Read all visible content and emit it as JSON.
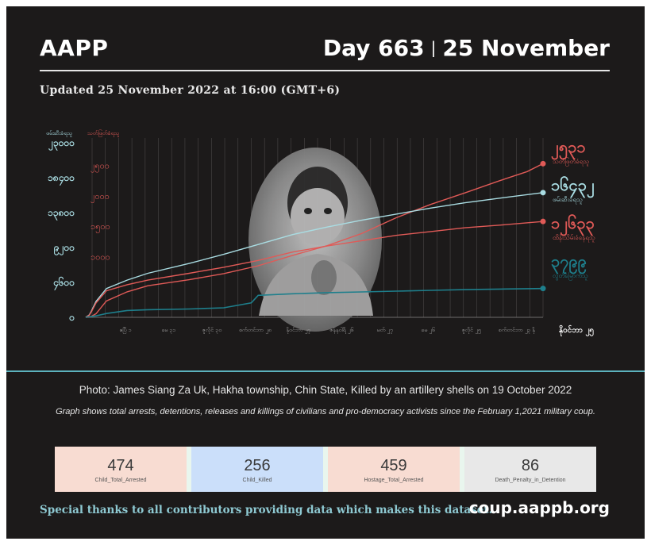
{
  "header": {
    "brand": "AAPP",
    "day": "Day 663",
    "separator": "|",
    "date": "25 November",
    "updated": "Updated 25 November 2022 at 16:00 (GMT+6)"
  },
  "chart_data": {
    "type": "line",
    "axis_titles": {
      "left_title": "ဖမ်းဆီးခံရသူ",
      "right_title": "သတ်ဖြတ်ခံရသူ"
    },
    "left_ticks": [
      "၀",
      "၄၆၀၀",
      "၉၂၀၀",
      "၁၃၈၀၀",
      "၁၈၄၀၀",
      "၂၃၀၀၀"
    ],
    "right_ticks": [
      "၁၀၀၀",
      "၁၅၀၀",
      "၂၀၀၀",
      "၂၅၀၀"
    ],
    "x_ticks": [
      "ဧပြီ ၁",
      "မေ ၃၁",
      "ဇူလိုင် ၃၀",
      "စက်တင်ဘာ ၂၈",
      "နိုဝင်ဘာ ၂၇",
      "ဇန်နဝါရီ ၂၆",
      "မတ် ၂၇",
      "မေ ၂၆",
      "ဇူလိုင် ၂၅",
      "စက်တင်ဘာ ၂၃",
      "နို"
    ],
    "x_end_label": "နိုဝင်ဘာ ၂၅",
    "series": [
      {
        "name": "သတ်ဖြတ်ခံရသူ",
        "value_label": "၂၅၃၁",
        "color": "#e05a57",
        "x": [
          0,
          5,
          8,
          15,
          30,
          60,
          90,
          150,
          200,
          250,
          300,
          350,
          400,
          450,
          500,
          550,
          600,
          640,
          663
        ],
        "y": [
          0,
          3,
          15,
          60,
          270,
          420,
          520,
          620,
          720,
          850,
          1020,
          1180,
          1380,
          1640,
          1860,
          2050,
          2250,
          2400,
          2531
        ]
      },
      {
        "name": "ဖမ်းဆီးခံရသူ",
        "value_label": "၁၆၄၃၂",
        "color": "#a9dce2",
        "x": [
          0,
          5,
          8,
          15,
          30,
          60,
          90,
          150,
          200,
          250,
          300,
          350,
          400,
          450,
          500,
          550,
          600,
          663
        ],
        "y": [
          0,
          300,
          800,
          2100,
          3800,
          4900,
          5800,
          7100,
          8300,
          9600,
          10900,
          11900,
          12800,
          13600,
          14400,
          15100,
          15700,
          16432
        ]
      },
      {
        "name": "ထိန်းသိမ်းခံနေရသူ",
        "value_label": "၁၂၆၃၃",
        "color": "#e05a57",
        "x": [
          0,
          5,
          8,
          15,
          30,
          60,
          90,
          150,
          200,
          250,
          300,
          350,
          400,
          450,
          500,
          550,
          600,
          663
        ],
        "y": [
          0,
          250,
          700,
          1900,
          3500,
          4300,
          4900,
          5800,
          6600,
          7500,
          8600,
          9400,
          10100,
          10800,
          11300,
          11800,
          12150,
          12633
        ]
      },
      {
        "name": "လွတ်မြောက်သူ",
        "value_label": "၃၇၉၉",
        "color": "#1e7f8c",
        "x": [
          0,
          15,
          30,
          60,
          90,
          150,
          200,
          240,
          250,
          300,
          350,
          400,
          450,
          500,
          550,
          600,
          663
        ],
        "y": [
          0,
          200,
          500,
          900,
          1000,
          1100,
          1250,
          1900,
          2900,
          3100,
          3250,
          3350,
          3450,
          3550,
          3650,
          3720,
          3799
        ]
      }
    ],
    "grid": "vertical"
  },
  "caption": "Photo: James Siang Za Uk, Hakha township, Chin State, Killed by an artillery shells on 19 October 2022",
  "note": "Graph shows total arrests, detentions, releases and killings of civilians and pro-democracy activists since the February 1,2021 military coup.",
  "stats": [
    {
      "value": "474",
      "label": "Child_Total_Arrested",
      "color": "#f8dcd2"
    },
    {
      "value": "256",
      "label": "Child_Killed",
      "color": "#cbdffa"
    },
    {
      "value": "459",
      "label": "Hostage_Total_Arrested",
      "color": "#f8dcd2"
    },
    {
      "value": "86",
      "label": "Death_Penalty_in_Detention",
      "color": "#e8e8e8"
    }
  ],
  "footer": {
    "thanks": "Special thanks to all contributors providing data which makes this dataset.",
    "url": "coup.aappb.org"
  },
  "colors": {
    "background": "#1c1a1a",
    "accent_teal": "#5cb2bd",
    "red": "#e05a57",
    "light_blue": "#a9dce2"
  }
}
